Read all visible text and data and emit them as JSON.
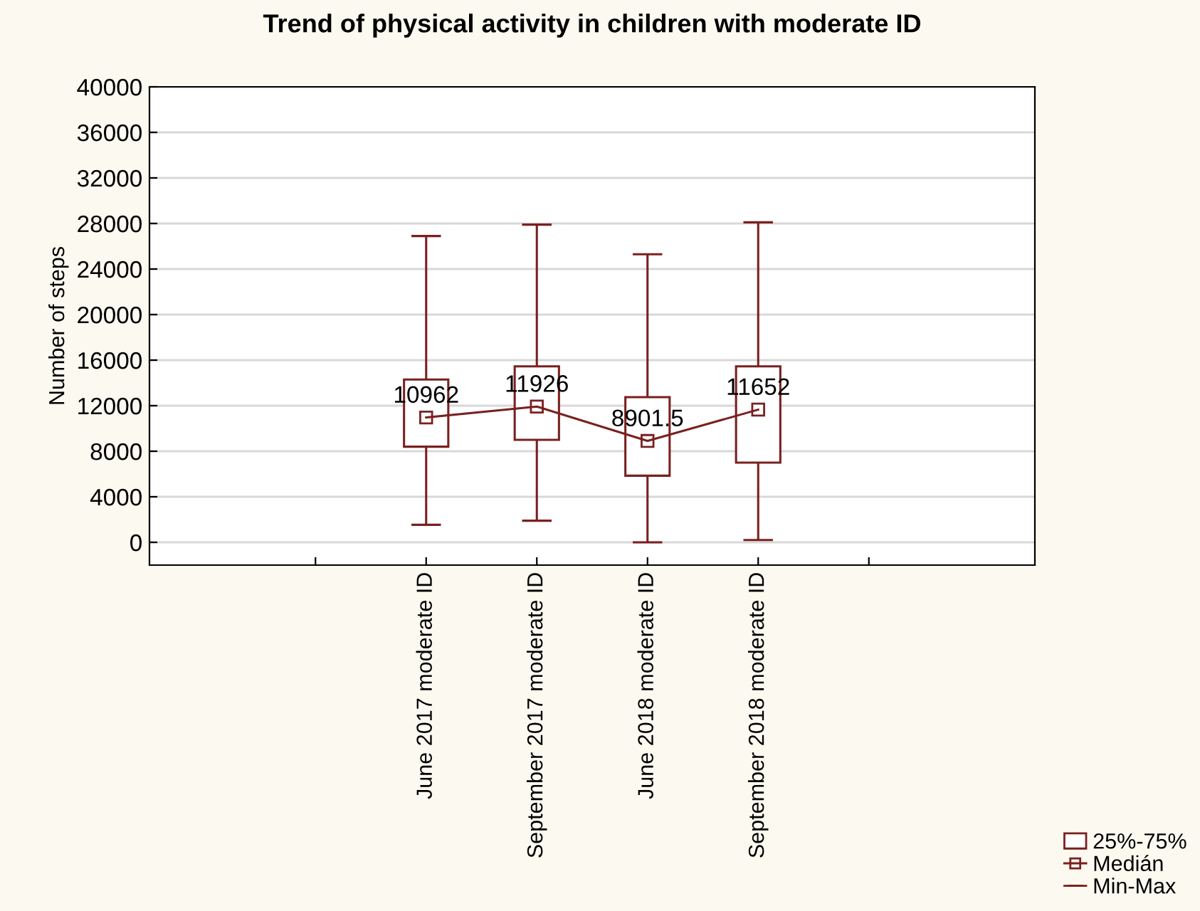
{
  "chart_data": {
    "type": "box",
    "title": "Trend of physical activity in children with moderate ID",
    "ylabel": "Number of steps",
    "categories": [
      null,
      null,
      "June 2017 moderate ID",
      "September 2017 moderate ID",
      "June 2018 moderate ID",
      "September 2018 moderate ID",
      null,
      null
    ],
    "series": [
      {
        "name": "25%-75%",
        "color": "#7a2020",
        "boxes": [
          null,
          null,
          {
            "low": 1540,
            "q1": 8400,
            "median": 10962,
            "q3": 14300,
            "high": 26900
          },
          {
            "low": 1900,
            "q1": 9000,
            "median": 11926,
            "q3": 15450,
            "high": 27900
          },
          {
            "low": 0,
            "q1": 5850,
            "median": 8901.5,
            "q3": 12750,
            "high": 25300
          },
          {
            "low": 200,
            "q1": 7000,
            "median": 11652,
            "q3": 15450,
            "high": 28100
          },
          null,
          null
        ]
      },
      {
        "type": "line",
        "name": "Medián",
        "color": "#7a2020",
        "values": [
          null,
          null,
          10962,
          11926,
          8901.5,
          11652,
          null,
          null
        ],
        "value_labels": [
          null,
          null,
          "10962",
          "11926",
          "8901.5",
          "11652",
          null,
          null
        ]
      }
    ],
    "annotations": [
      "Min-Max"
    ],
    "ylim": [
      -2000,
      40000
    ],
    "yticks": [
      0,
      4000,
      8000,
      12000,
      16000,
      20000,
      24000,
      28000,
      32000,
      36000,
      40000
    ],
    "grid": "y",
    "legend": "bottom right"
  }
}
